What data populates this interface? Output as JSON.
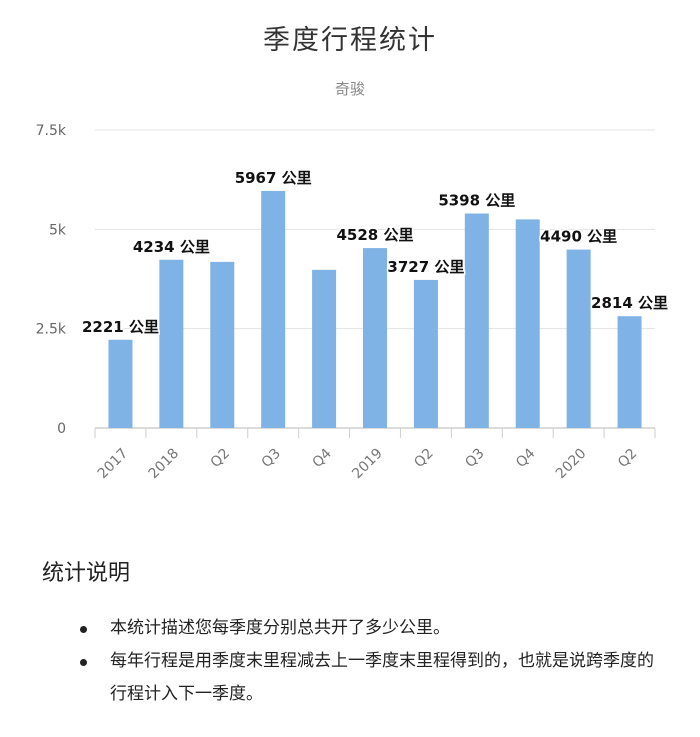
{
  "chart_data": {
    "type": "bar",
    "title": "季度行程统计",
    "subtitle": "奇骏",
    "categories": [
      "2017",
      "2018",
      "Q2",
      "Q3",
      "Q4",
      "2019",
      "Q2",
      "Q3",
      "Q4",
      "2020",
      "Q2"
    ],
    "values": [
      2221,
      4234,
      4180,
      5967,
      3980,
      4528,
      3727,
      5398,
      5250,
      4490,
      2814
    ],
    "labeled_indices": [
      0,
      1,
      3,
      5,
      6,
      7,
      9,
      10
    ],
    "data_label_suffix": " 公里",
    "ylim": [
      0,
      7500
    ],
    "yticks": [
      0,
      2500,
      5000,
      7500
    ],
    "ytick_labels": [
      "0",
      "2.5k",
      "5k",
      "7.5k"
    ],
    "grid": true,
    "bar_color": "#7fb2e5"
  },
  "notes": {
    "title": "统计说明",
    "items": [
      "本统计描述您每季度分别总共开了多少公里。",
      "每年行程是用季度末里程减去上一季度末里程得到的，也就是说跨季度的行程计入下一季度。"
    ]
  }
}
